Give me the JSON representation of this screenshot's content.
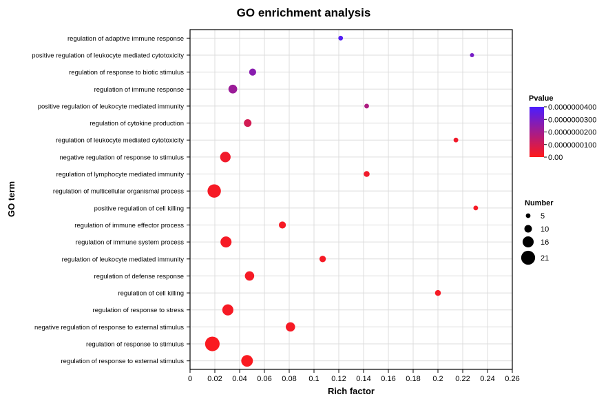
{
  "chart_data": {
    "type": "scatter",
    "title": "GO enrichment analysis",
    "xlabel": "Rich factor",
    "ylabel": "GO term",
    "xlim": [
      0,
      0.26
    ],
    "x_ticks": [
      "0",
      "0.02",
      "0.04",
      "0.06",
      "0.08",
      "0.1",
      "0.12",
      "0.14",
      "0.16",
      "0.18",
      "0.2",
      "0.22",
      "0.24",
      "0.26"
    ],
    "grid": true,
    "color_legend": {
      "title": "Pvalue",
      "labels": [
        "0.0000000400",
        "0.0000000300",
        "0.0000000200",
        "0.0000000100",
        "0.00"
      ],
      "range": [
        0,
        4e-08
      ],
      "colors": [
        "#ff1a1a",
        "#4a1dff"
      ]
    },
    "size_legend": {
      "title": "Number",
      "labels": [
        "5",
        "10",
        "16",
        "21"
      ],
      "values": [
        5,
        10,
        16,
        21
      ]
    },
    "terms": [
      {
        "name": "regulation of adaptive immune response",
        "x": 0.1215,
        "number": 5,
        "pvalue": 3.8e-08
      },
      {
        "name": "positive regulation of leukocyte mediated cytotoxicity",
        "x": 0.2275,
        "number": 4,
        "pvalue": 3e-08
      },
      {
        "name": "regulation of response to biotic stimulus",
        "x": 0.0505,
        "number": 9,
        "pvalue": 2.6e-08
      },
      {
        "name": "regulation of immune response",
        "x": 0.0345,
        "number": 12,
        "pvalue": 2.2e-08
      },
      {
        "name": "positive regulation of leukocyte mediated immunity",
        "x": 0.1425,
        "number": 5,
        "pvalue": 1.8e-08
      },
      {
        "name": "regulation of cytokine production",
        "x": 0.0465,
        "number": 10,
        "pvalue": 1e-08
      },
      {
        "name": "regulation of leukocyte mediated cytotoxicity",
        "x": 0.2145,
        "number": 5,
        "pvalue": 3e-09
      },
      {
        "name": "negative regulation of response to stimulus",
        "x": 0.0285,
        "number": 15,
        "pvalue": 3e-09
      },
      {
        "name": "regulation of lymphocyte mediated immunity",
        "x": 0.1425,
        "number": 7,
        "pvalue": 3e-09
      },
      {
        "name": "regulation of multicellular organismal process",
        "x": 0.0195,
        "number": 20,
        "pvalue": 2e-09
      },
      {
        "name": "positive regulation of cell killing",
        "x": 0.2305,
        "number": 5,
        "pvalue": 2e-09
      },
      {
        "name": "regulation of immune effector process",
        "x": 0.0745,
        "number": 9,
        "pvalue": 2e-09
      },
      {
        "name": "regulation of immune system process",
        "x": 0.029,
        "number": 16,
        "pvalue": 2e-09
      },
      {
        "name": "regulation of leukocyte mediated immunity",
        "x": 0.107,
        "number": 8,
        "pvalue": 2e-09
      },
      {
        "name": "regulation of defense response",
        "x": 0.048,
        "number": 13,
        "pvalue": 2e-09
      },
      {
        "name": "regulation of cell killing",
        "x": 0.2,
        "number": 7,
        "pvalue": 2e-09
      },
      {
        "name": "regulation of response to stress",
        "x": 0.0305,
        "number": 16,
        "pvalue": 2e-09
      },
      {
        "name": "negative regulation of response to external stimulus",
        "x": 0.081,
        "number": 13,
        "pvalue": 2e-09
      },
      {
        "name": "regulation of response to stimulus",
        "x": 0.018,
        "number": 22,
        "pvalue": 1e-09
      },
      {
        "name": "regulation of response to external stimulus",
        "x": 0.046,
        "number": 17,
        "pvalue": 1e-09
      }
    ]
  }
}
